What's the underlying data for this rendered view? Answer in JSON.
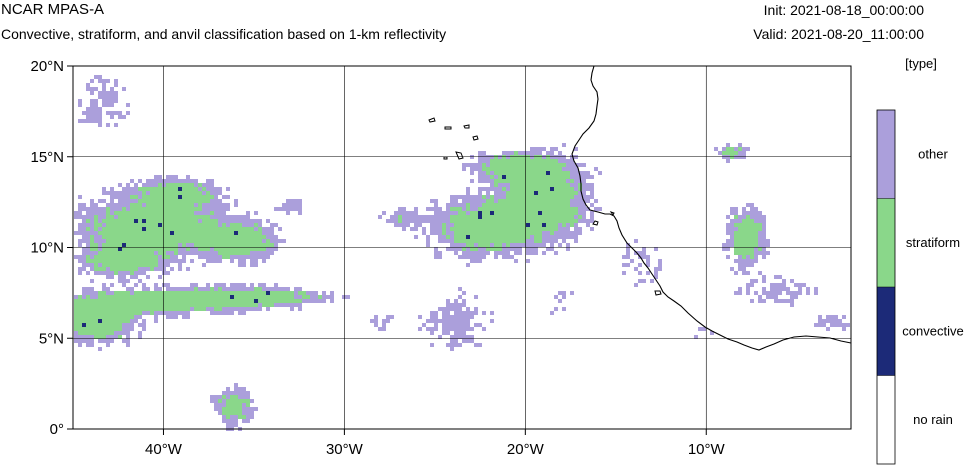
{
  "header": {
    "model": "NCAR MPAS-A",
    "subtitle": "Convective, stratiform, and anvil classification based on 1-km reflectivity",
    "init": "Init: 2021-08-18_00:00:00",
    "valid": "Valid: 2021-08-20_11:00:00"
  },
  "map": {
    "lon_range": [
      -45,
      -2
    ],
    "lat_range": [
      0,
      20
    ],
    "x_ticks": [
      {
        "lon": -40,
        "label": "40°W"
      },
      {
        "lon": -30,
        "label": "30°W"
      },
      {
        "lon": -20,
        "label": "20°W"
      },
      {
        "lon": -10,
        "label": "10°W"
      }
    ],
    "y_ticks": [
      {
        "lat": 0,
        "label": "0°"
      },
      {
        "lat": 5,
        "label": "5°N"
      },
      {
        "lat": 10,
        "label": "10°N"
      },
      {
        "lat": 15,
        "label": "15°N"
      },
      {
        "lat": 20,
        "label": "20°N"
      }
    ],
    "gridlines": true
  },
  "legend": {
    "title": "[type]",
    "items": [
      {
        "label": "other",
        "color": "#ab9fdb"
      },
      {
        "label": "stratiform",
        "color": "#8ad78a"
      },
      {
        "label": "convective",
        "color": "#1c2a78"
      },
      {
        "label": "no rain",
        "color": "#ffffff"
      }
    ]
  },
  "colors": {
    "other": "#ab9fdb",
    "stratiform": "#8ad78a",
    "convective": "#1c2a78",
    "coastline": "#000000"
  }
}
